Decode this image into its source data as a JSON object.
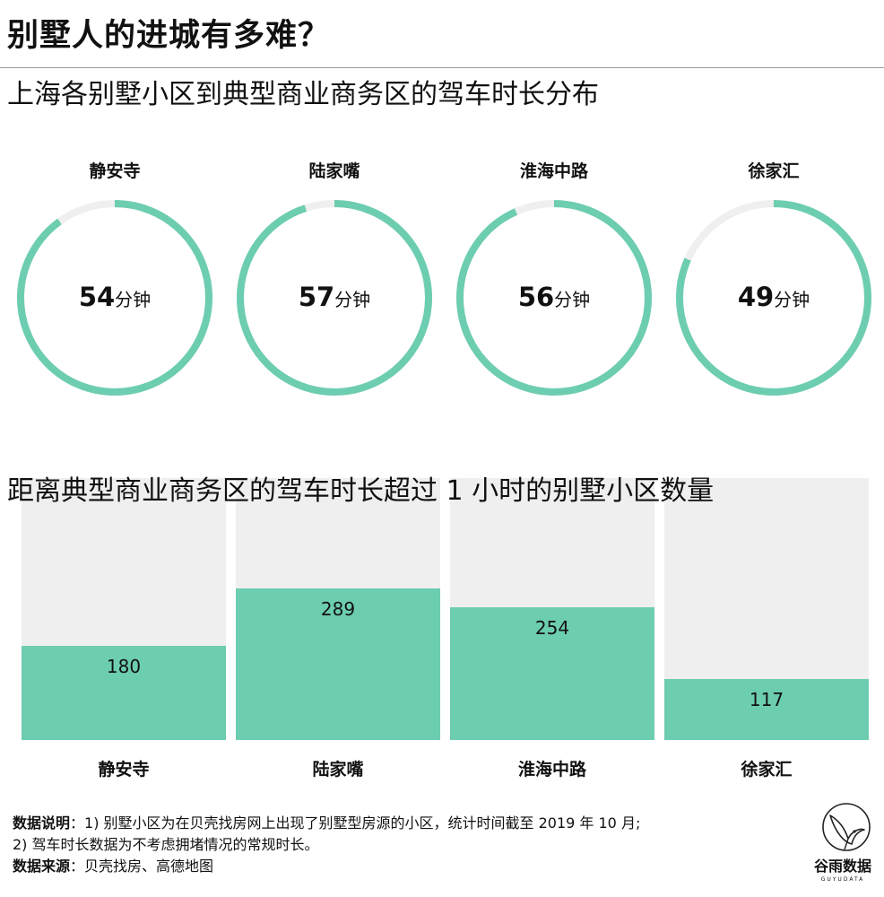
{
  "title": "别墅人的进城有多难？",
  "colors": {
    "accent": "#6dcdb0",
    "track": "#efefef",
    "text": "#111111"
  },
  "chart_data": [
    {
      "type": "pie",
      "title": "上海各别墅小区到典型商业商务区的驾车时长分布",
      "unit": "分钟",
      "full_scale": 60,
      "categories": [
        "静安寺",
        "陆家嘴",
        "淮海中路",
        "徐家汇"
      ],
      "values": [
        54,
        57,
        56,
        49
      ]
    },
    {
      "type": "bar",
      "title": "距离典型商业商务区的驾车时长超过 1 小时的别墅小区数量",
      "categories": [
        "静安寺",
        "陆家嘴",
        "淮海中路",
        "徐家汇"
      ],
      "values": [
        180,
        289,
        254,
        117
      ],
      "ylim": [
        0,
        500
      ]
    }
  ],
  "notes": {
    "label1": "数据说明",
    "line1": "：1) 别墅小区为在贝壳找房网上出现了别墅型房源的小区，统计时间截至 2019 年 10 月;",
    "line2": "2) 驾车时长数据为不考虑拥堵情况的常规时长。",
    "label2": "数据来源",
    "source": "：贝壳找房、高德地图"
  },
  "logo": {
    "name": "谷雨数据",
    "sub": "GUYUDATA",
    "icon": "sparrow-logo-icon"
  }
}
